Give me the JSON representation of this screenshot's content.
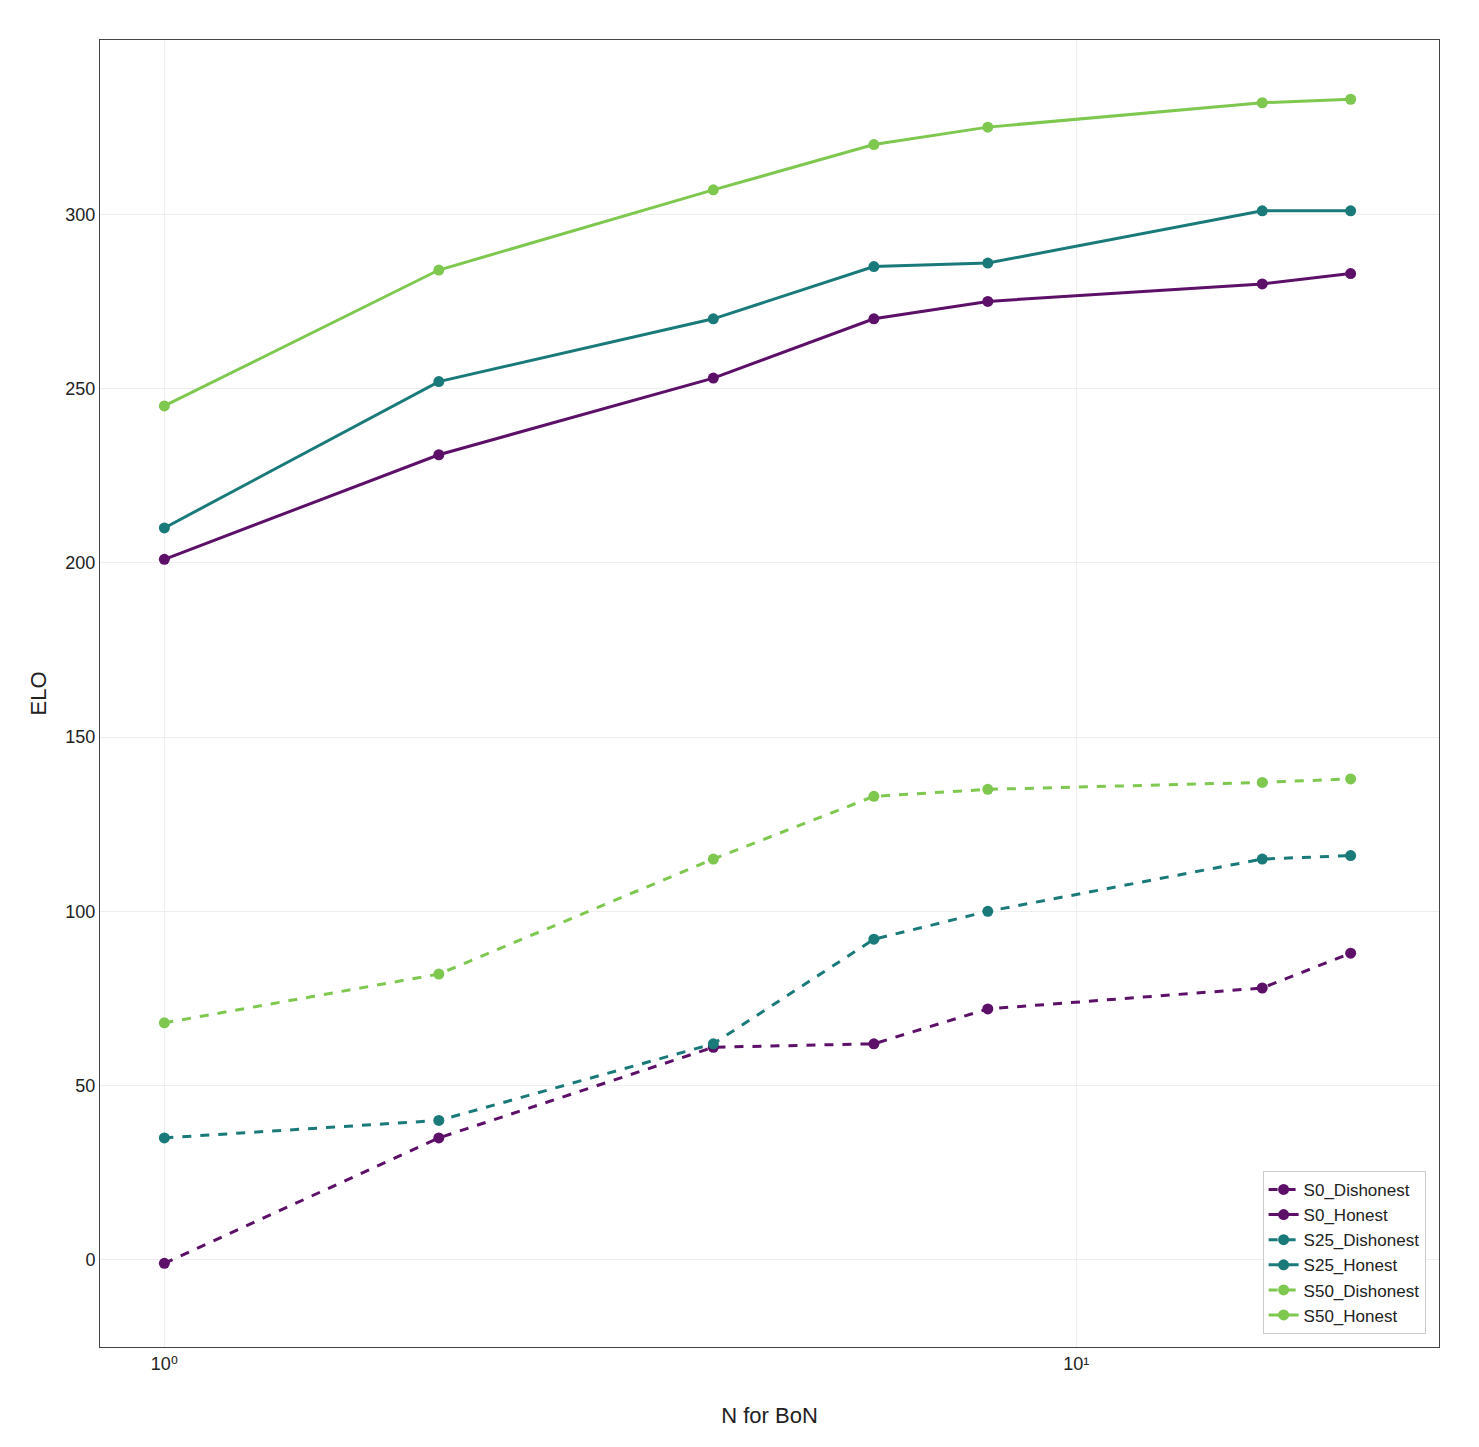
{
  "chart_data": {
    "type": "line",
    "xlabel": "N for BoN",
    "ylabel": "ELO",
    "x": [
      1,
      2,
      4,
      6,
      8,
      16,
      20
    ],
    "series": [
      {
        "name": "S0_Dishonest",
        "color": "#5c1068",
        "line_style": "dashed",
        "values": [
          -1,
          35,
          61,
          62,
          72,
          78,
          88
        ]
      },
      {
        "name": "S0_Honest",
        "color": "#5c1068",
        "line_style": "solid",
        "values": [
          201,
          231,
          253,
          270,
          275,
          280,
          283
        ]
      },
      {
        "name": "S25_Dishonest",
        "color": "#1a7a7a",
        "line_style": "dashed",
        "values": [
          35,
          40,
          62,
          92,
          100,
          115,
          116
        ]
      },
      {
        "name": "S25_Honest",
        "color": "#1a7a7a",
        "line_style": "solid",
        "values": [
          210,
          252,
          270,
          285,
          286,
          301,
          301
        ]
      },
      {
        "name": "S50_Dishonest",
        "color": "#7ec850",
        "line_style": "dashed",
        "values": [
          68,
          82,
          115,
          133,
          135,
          137,
          138
        ]
      },
      {
        "name": "S50_Honest",
        "color": "#7ec850",
        "line_style": "solid",
        "values": [
          245,
          284,
          307,
          320,
          325,
          332,
          333
        ]
      }
    ],
    "log": "x",
    "xlim": [
      0.85,
      25
    ],
    "xticks": [
      {
        "value": 1,
        "label": "10⁰"
      },
      {
        "value": 10,
        "label": "10¹"
      }
    ],
    "ylim": [
      -25,
      350
    ],
    "yticks": [
      0,
      50,
      100,
      150,
      200,
      250,
      300
    ],
    "grid": true,
    "legend": "lower right",
    "marker": "o"
  }
}
